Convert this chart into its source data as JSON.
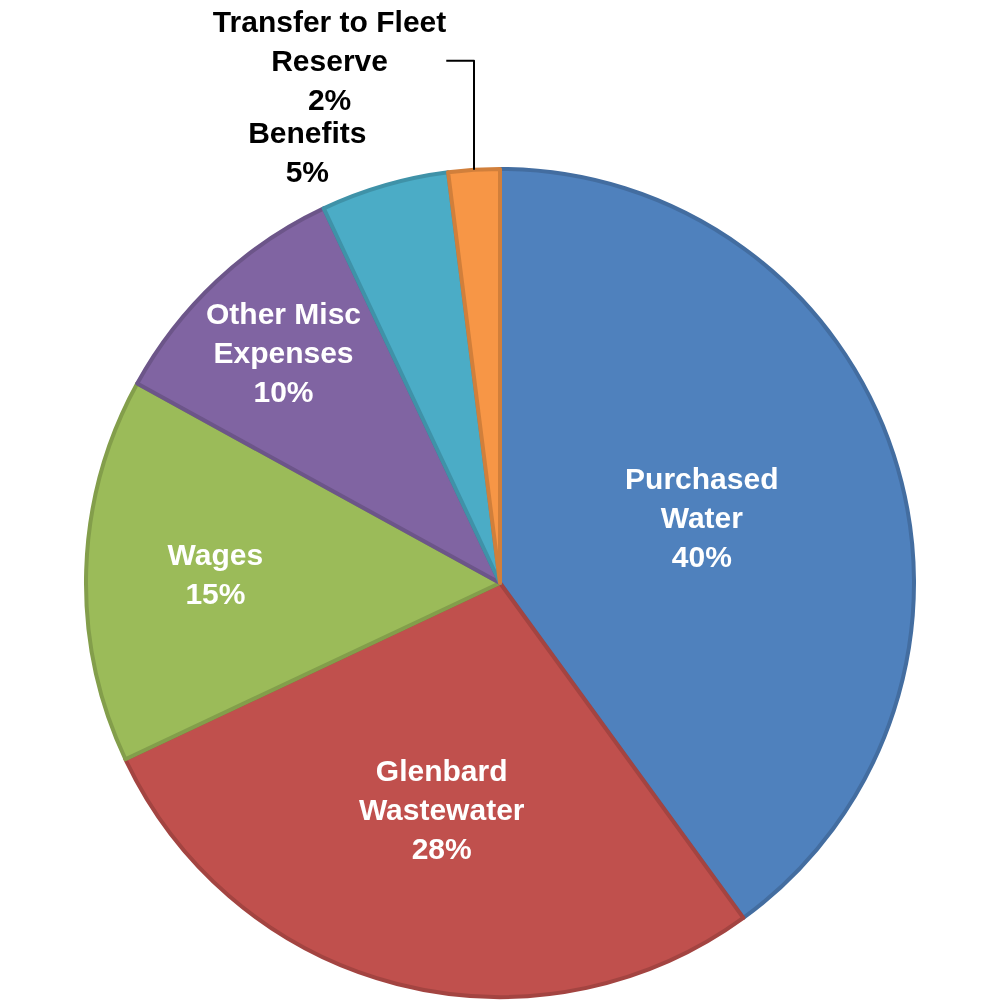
{
  "chart_data": {
    "type": "pie",
    "categories": [
      "Purchased\nWater",
      "Glenbard\nWastewater",
      "Wages",
      "Other Misc\nExpenses",
      "Benefits",
      "Transfer to Fleet\nReserve"
    ],
    "values": [
      40,
      28,
      15,
      10,
      5,
      2
    ],
    "colors": [
      "#4f81bd",
      "#c0504d",
      "#9bbb59",
      "#8064a2",
      "#4bacc6",
      "#f79646"
    ],
    "value_labels": [
      "40%",
      "28%",
      "15%",
      "10%",
      "5%",
      "2%"
    ]
  }
}
